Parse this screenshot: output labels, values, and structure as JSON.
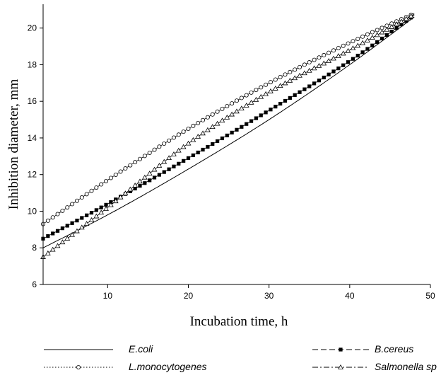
{
  "chart_data": {
    "type": "line",
    "xlabel": "Incubation time, h",
    "ylabel": "Inhibition diameter, mm",
    "xlim": [
      2,
      50
    ],
    "ylim": [
      6,
      21.3
    ],
    "xticks": [
      10,
      20,
      30,
      40,
      50
    ],
    "yticks": [
      6,
      8,
      10,
      12,
      14,
      16,
      18,
      20
    ],
    "grid": false,
    "legend_position": "bottom",
    "x": [
      2,
      10,
      20,
      30,
      40,
      48
    ],
    "series": [
      {
        "name": "E.coli",
        "marker": "none",
        "dash": "solid",
        "values": [
          8.0,
          9.8,
          12.3,
          15.0,
          18.0,
          20.6
        ]
      },
      {
        "name": "B.cereus",
        "marker": "filled-square",
        "dash": "dashed",
        "values": [
          8.5,
          10.4,
          12.9,
          15.5,
          18.2,
          20.7
        ]
      },
      {
        "name": "L.monocytogenes",
        "marker": "open-circle",
        "dash": "dotted",
        "values": [
          9.3,
          11.7,
          14.5,
          17.0,
          19.2,
          20.8
        ]
      },
      {
        "name": "Salmonella sp",
        "marker": "open-triangle",
        "dash": "dash-dot",
        "values": [
          7.5,
          10.2,
          13.7,
          16.5,
          18.8,
          20.75
        ]
      }
    ]
  }
}
